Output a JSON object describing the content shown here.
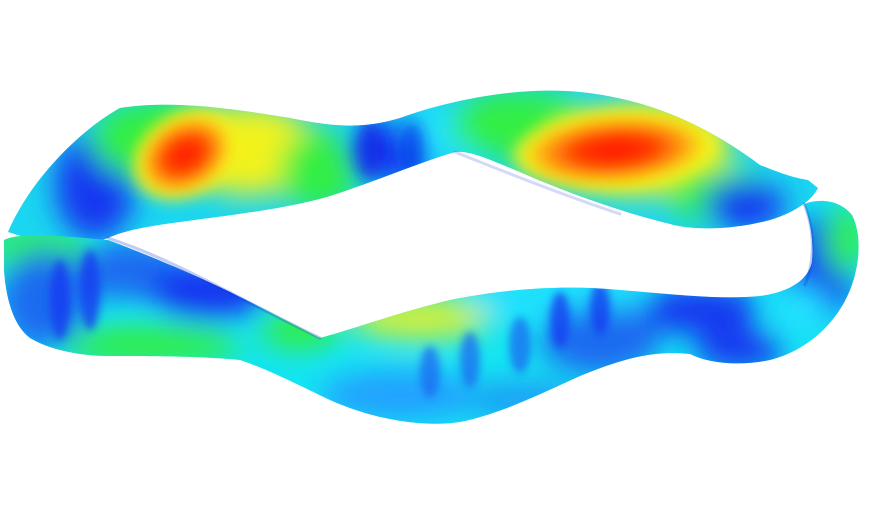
{
  "scene": {
    "subject": "twisted-band-surface",
    "background_color": "#ffffff",
    "colormap": [
      "#0000ff",
      "#00ffff",
      "#00ff00",
      "#ffff00",
      "#ff0000"
    ],
    "colors": {
      "blue": "#1238f0",
      "deep_blue": "#0a1ee8",
      "cyan": "#10f0f0",
      "aqua": "#22e0ff",
      "green": "#33ee44",
      "yellow": "#f2f21a",
      "orange": "#ff9a10",
      "red": "#ff2a08"
    }
  }
}
